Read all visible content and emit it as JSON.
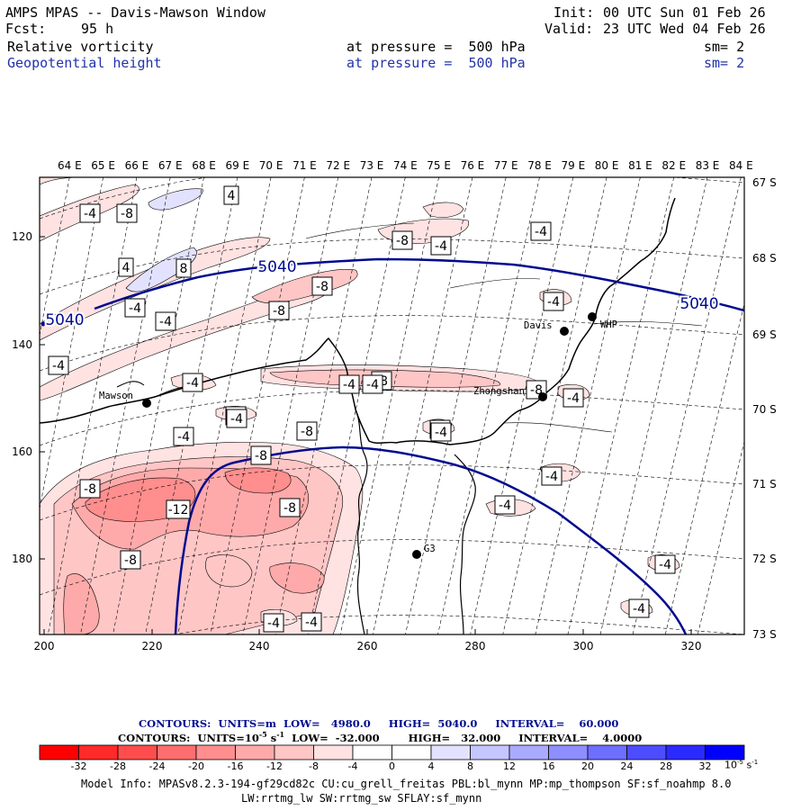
{
  "header": {
    "title": "AMPS MPAS -- Davis-Mawson Window",
    "forecast_label": "Fcst:",
    "forecast_value": "95 h",
    "init_label": "Init:",
    "init_value": "00 UTC Sun 01 Feb 26",
    "valid_label": "Valid:",
    "valid_value": "23 UTC Wed 04 Feb 26",
    "field1_name": "Relative vorticity",
    "field1_level": "at pressure =  500 hPa",
    "field1_sm": "sm= 2",
    "field2_name": "Geopotential height",
    "field2_level": "at pressure =  500 hPa",
    "field2_sm": "sm= 2"
  },
  "axes": {
    "longitude_labels": [
      "64 E",
      "65 E",
      "66 E",
      "67 E",
      "68 E",
      "69 E",
      "70 E",
      "71 E",
      "72 E",
      "73 E",
      "74 E",
      "75 E",
      "76 E",
      "77 E",
      "78 E",
      "79 E",
      "80 E",
      "81 E",
      "82 E",
      "83 E",
      "84 E"
    ],
    "latitude_labels": [
      "67 S",
      "68 S",
      "69 S",
      "70 S",
      "71 S",
      "72 S",
      "73 S"
    ],
    "y_grid_labels": [
      "120",
      "140",
      "160",
      "180"
    ],
    "x_grid_labels": [
      "200",
      "220",
      "240",
      "260",
      "280",
      "300",
      "320"
    ]
  },
  "stations": [
    {
      "name": "Mawson"
    },
    {
      "name": "Davis"
    },
    {
      "name": "WHP"
    },
    {
      "name": "Zhongshan"
    },
    {
      "name": "G3"
    }
  ],
  "height_contour_label": "5040",
  "vorticity_labels": [
    "4",
    "-8",
    "-4",
    "-8",
    "-8",
    "-4",
    "-4",
    "-4",
    "4",
    "-8",
    "8",
    "-4",
    "-4",
    "-4",
    "-4",
    "-4",
    "-4",
    "-8",
    "-4",
    "-8",
    "-4",
    "-8",
    "-8",
    "-4",
    "-4",
    "-8",
    "-4",
    "-4",
    "-12",
    "-8",
    "-4",
    "-8",
    "-4",
    "-4",
    "-4",
    "-4",
    "-4"
  ],
  "contours_info": {
    "height_line": {
      "label": "CONTOURS:",
      "units": "UNITS=m",
      "low": "LOW=   4980.0",
      "high": "HIGH=  5040.0",
      "interval": "INTERVAL=    60.000"
    },
    "vort_line": {
      "label": "CONTOURS:",
      "units_prefix": "UNITS=10",
      "units_exp": "-5",
      "units_suffix": "s",
      "units_suffix_exp": "-1",
      "low": "LOW=  -32.000",
      "high": "HIGH=   32.000",
      "interval": "INTERVAL=    4.0000"
    }
  },
  "colorbar": {
    "labels": [
      "-32",
      "-28",
      "-24",
      "-20",
      "-16",
      "-12",
      "-8",
      "-4",
      "0",
      "4",
      "8",
      "12",
      "16",
      "20",
      "24",
      "28",
      "32"
    ],
    "colors": [
      "#ff0000",
      "#ff2a2a",
      "#ff4d4d",
      "#ff6e6e",
      "#ff8e8e",
      "#ffaaaa",
      "#ffc6c6",
      "#ffe2e2",
      "#ffffff",
      "#ffffff",
      "#e2e2ff",
      "#c6c6ff",
      "#aaaaff",
      "#8e8eff",
      "#6e6eff",
      "#4d4dff",
      "#2a2aff",
      "#0000ff"
    ],
    "unit_base": "10",
    "unit_exp": "-5",
    "unit_s": "s",
    "unit_s_exp": "-1"
  },
  "model_info": {
    "line1": "Model Info: MPASv8.2.3-194-gf29cd82c CU:cu_grell_freitas PBL:bl_mynn MP:mp_thompson SF:sf_noahmp 8.0",
    "line2": "LW:rrtmg_lw SW:rrtmg_sw SFLAY:sf_mynn"
  }
}
